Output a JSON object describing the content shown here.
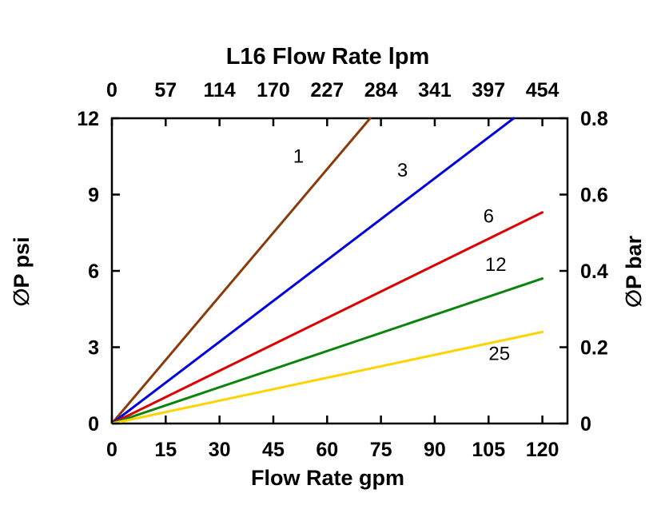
{
  "chart_data": {
    "type": "line",
    "title": "L16 Flow Rate lpm",
    "x_range": [
      0,
      127
    ],
    "y_range": [
      0,
      12
    ],
    "top_axis": {
      "ticks": [
        "0",
        "57",
        "114",
        "170",
        "227",
        "284",
        "341",
        "397",
        "454"
      ]
    },
    "bottom_axis": {
      "label": "Flow Rate gpm",
      "ticks": [
        "0",
        "15",
        "30",
        "45",
        "60",
        "75",
        "90",
        "105",
        "120"
      ],
      "tick_values": [
        0,
        15,
        30,
        45,
        60,
        75,
        90,
        105,
        120
      ]
    },
    "left_axis": {
      "label": "∅P psi",
      "ticks": [
        "0",
        "3",
        "6",
        "9",
        "12"
      ],
      "tick_values": [
        0,
        3,
        6,
        9,
        12
      ]
    },
    "right_axis": {
      "label": "∅P bar",
      "ticks": [
        "0",
        "0.2",
        "0.4",
        "0.6",
        "0.8"
      ]
    },
    "axis_color": "#000000",
    "series": [
      {
        "name": "1",
        "color": "#8B3A0B",
        "points": [
          [
            0,
            0
          ],
          [
            72,
            12
          ]
        ],
        "label_pos": [
          52,
          10.25
        ]
      },
      {
        "name": "3",
        "color": "#0000DC",
        "points": [
          [
            0,
            0
          ],
          [
            112,
            12
          ]
        ],
        "label_pos": [
          81,
          9.7
        ]
      },
      {
        "name": "6",
        "color": "#DE0000",
        "points": [
          [
            0,
            0
          ],
          [
            120,
            8.3
          ]
        ],
        "label_pos": [
          105,
          7.9
        ]
      },
      {
        "name": "12",
        "color": "#0B840B",
        "points": [
          [
            0,
            0
          ],
          [
            120,
            5.7
          ]
        ],
        "label_pos": [
          107,
          6.0
        ]
      },
      {
        "name": "25",
        "color": "#FFD300",
        "points": [
          [
            0,
            0
          ],
          [
            120,
            3.6
          ]
        ],
        "label_pos": [
          108,
          2.5
        ]
      }
    ]
  }
}
